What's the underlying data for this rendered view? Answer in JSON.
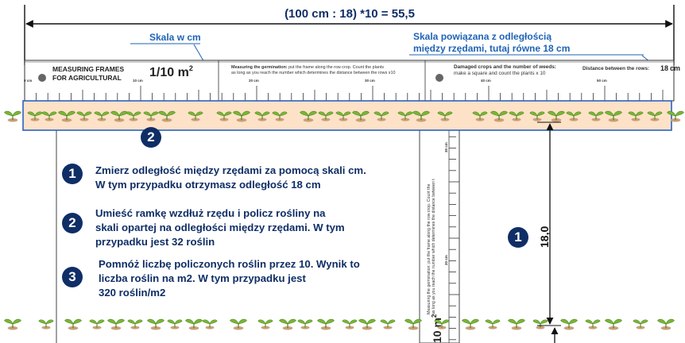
{
  "formula": "(100 cm : 18) *10 = 55,5",
  "callouts": {
    "cm_scale": "Skala w cm",
    "distance_scale_line1": "Skala powiązana z odległością",
    "distance_scale_line2": "między rzędami, tutaj równe 18 cm"
  },
  "frame": {
    "brand_line1": "MEASURING FRAMES",
    "brand_line2": "FOR AGRICULTURAL",
    "scale_label": "1/10 m",
    "scale_exponent": "2",
    "germination_bold": "Measuring the germination:",
    "germination_text1": " put the frame along the row crop. Count the plants",
    "germination_text2": "as long as you reach the number which determines the distance between the rows x10",
    "damaged_title": "Damaged crops and the number of weeds:",
    "damaged_text": "make a square and count the plants x 10",
    "distance_label": "Distance between the rows:",
    "distance_value": "18",
    "distance_unit": "cm",
    "cm_ticks": [
      "0 cm",
      "10 cm",
      "20 cm",
      "30 cm",
      "40 cm",
      "50 cm"
    ],
    "vertical_text1": "Measuring the germination: put the frame along the row crop. Count the",
    "vertical_text2": "as long as you reach the number which determines the distance between t",
    "vertical_ticks": [
      "30 cm",
      "20 cm"
    ],
    "vertical_scale": "10 m",
    "vertical_exponent": "2"
  },
  "dimension": {
    "value": "18,0"
  },
  "badges": {
    "one": "1",
    "two": "2",
    "three": "3"
  },
  "steps": [
    {
      "badge": "1",
      "line1": "Zmierz odległość między rzędami za pomocą skali cm.",
      "line2": "W tym przypadku otrzymasz odległość 18 cm",
      "line3": ""
    },
    {
      "badge": "2",
      "line1": "Umieść ramkę wzdłuż rzędu i policz rośliny na",
      "line2": "skali opartej na odległości między rzędami. W tym",
      "line3": "przypadku jest 32 roślin"
    },
    {
      "badge": "3",
      "line1": "Pomnóż liczbę policzonych roślin przez 10. Wynik to",
      "line2": "liczba roślin na m2. W tym przypadku jest",
      "line3": "320 roślin/m2"
    }
  ],
  "colors": {
    "navy": "#0f2e66",
    "callout_blue": "#1f63b5",
    "highlight": "#fde2c7",
    "leaf": "#7ab637",
    "soil": "#c9a07a"
  }
}
